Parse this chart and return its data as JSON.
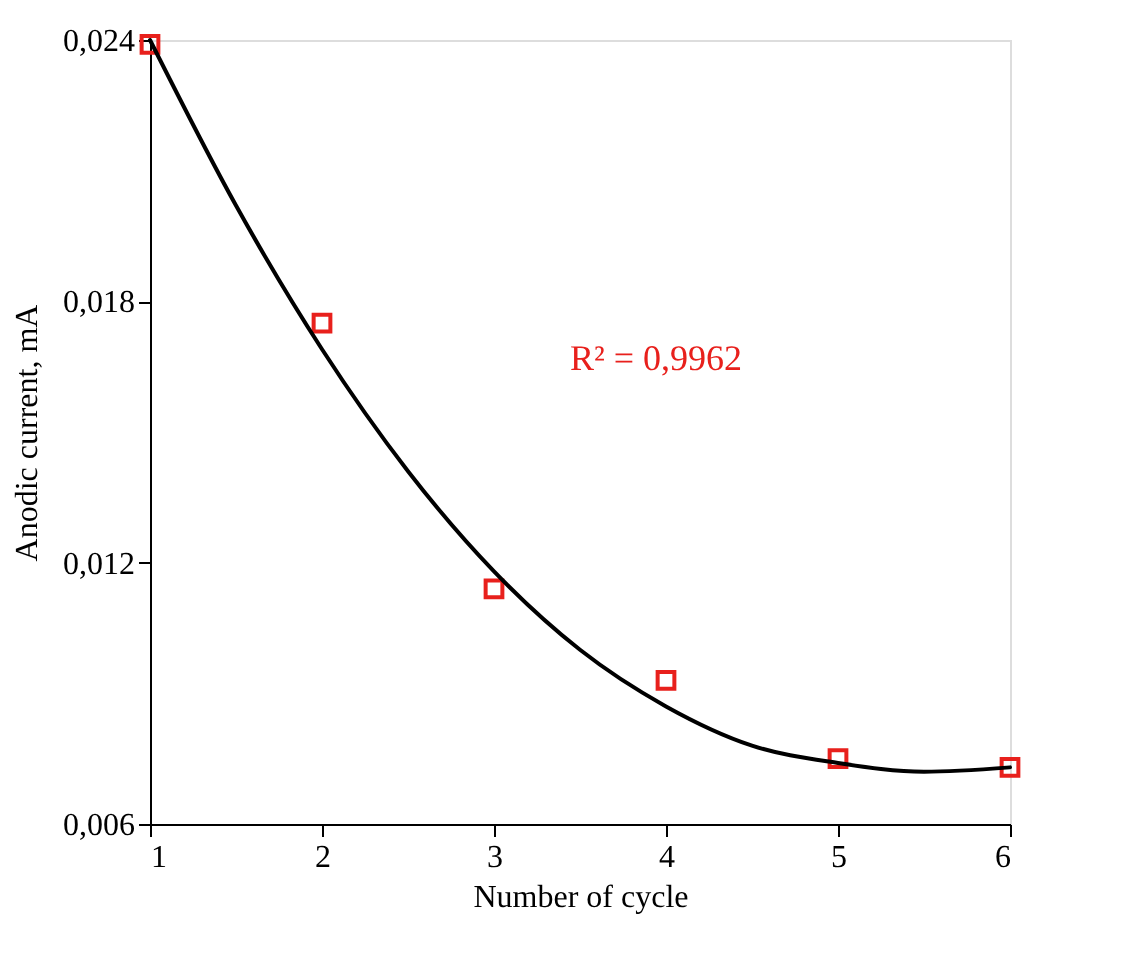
{
  "chart_data": {
    "type": "scatter",
    "xlabel": "Number of cycle",
    "ylabel": "Anodic current, mA",
    "xlim": [
      1,
      6
    ],
    "xticks": [
      1,
      2,
      3,
      4,
      5,
      6
    ],
    "ylim": [
      0.006,
      0.024
    ],
    "yticks": [
      {
        "value": 0.006,
        "label": "0,006"
      },
      {
        "value": 0.012,
        "label": "0,012"
      },
      {
        "value": 0.018,
        "label": "0,018"
      },
      {
        "value": 0.024,
        "label": "0,024"
      }
    ],
    "grid": false,
    "annotations": [
      "R² = 0,9962"
    ],
    "series": [
      {
        "color": "#e8201c",
        "marker": "square",
        "x": [
          1,
          2,
          3,
          4,
          5,
          6
        ],
        "values": [
          0.0239,
          0.0175,
          0.0114,
          0.0093,
          0.0075,
          0.0073
        ]
      },
      {
        "type": "line",
        "color": "#000000",
        "line_style": "solid",
        "x": [
          1,
          1.5,
          2,
          2.5,
          3,
          3.5,
          4,
          4.5,
          5,
          5.5,
          6
        ],
        "values": [
          0.024,
          0.0202,
          0.0169,
          0.0141,
          0.0118,
          0.01,
          0.0087,
          0.0078,
          0.0074,
          0.0072,
          0.0073
        ]
      }
    ]
  }
}
